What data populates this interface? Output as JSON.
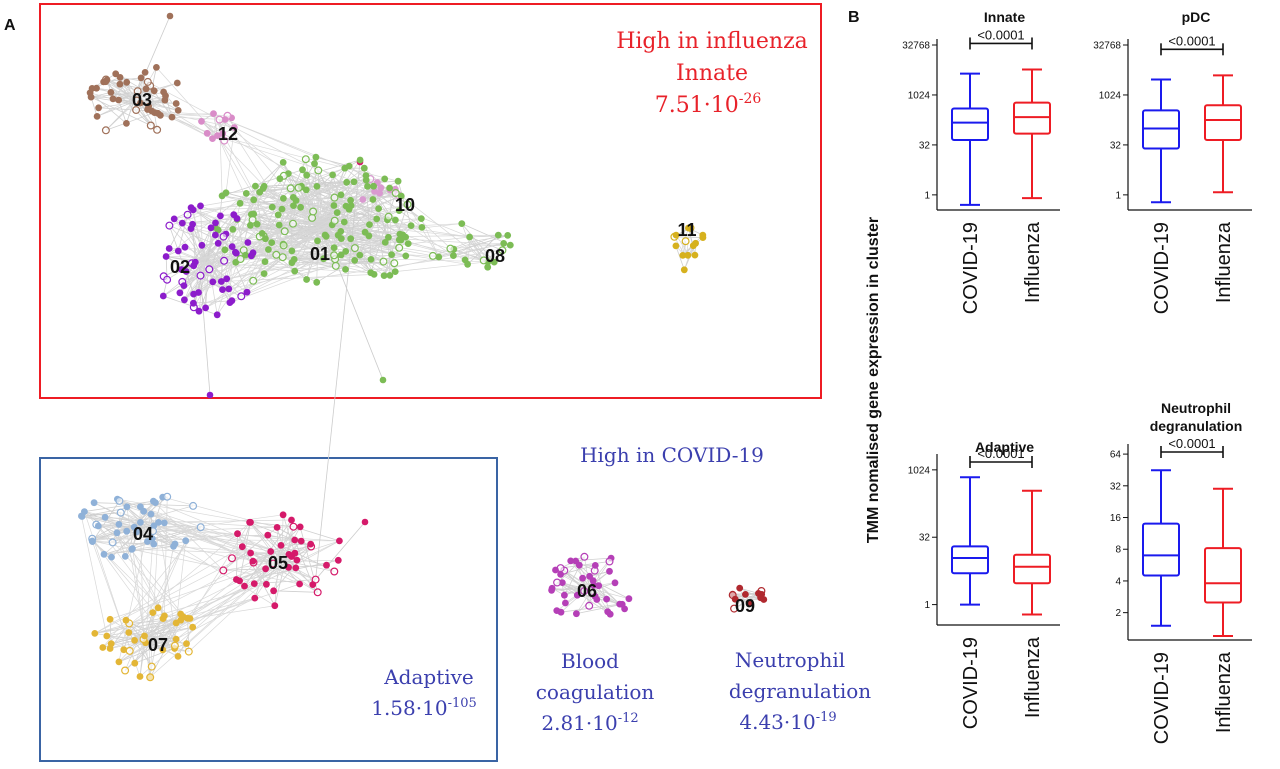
{
  "panel_a_label": "A",
  "panel_b_label": "B",
  "influenza_header": "High in influenza",
  "influenza_term": "Innate",
  "influenza_p": {
    "base": "7.51·10",
    "exp": "-26"
  },
  "covid_header": "High in COVID-19",
  "covid_groups": [
    {
      "term": "Adaptive",
      "base": "1.58·10",
      "exp": "-105"
    },
    {
      "term_line1": "Blood",
      "term_line2": "coagulation",
      "base": "2.81·10",
      "exp": "-12"
    },
    {
      "term_line1": "Neutrophil",
      "term_line2": "degranulation",
      "base": "4.43·10",
      "exp": "-19"
    }
  ],
  "network_clusters": [
    {
      "id": "01",
      "color": "#7cbc55"
    },
    {
      "id": "02",
      "color": "#8c1ccb"
    },
    {
      "id": "03",
      "color": "#a0715a"
    },
    {
      "id": "04",
      "color": "#8fb1d8"
    },
    {
      "id": "05",
      "color": "#d51a6a"
    },
    {
      "id": "06",
      "color": "#b53fb7"
    },
    {
      "id": "07",
      "color": "#e3b636"
    },
    {
      "id": "08",
      "color": "#7cbc55"
    },
    {
      "id": "09",
      "color": "#b0292f"
    },
    {
      "id": "10",
      "color": "#d99ad0"
    },
    {
      "id": "11",
      "color": "#d6b11e"
    },
    {
      "id": "12",
      "color": "#d98cc8"
    }
  ],
  "colors": {
    "covid": "#1a1aee",
    "influenza": "#ee1c24",
    "influenza_frame": "#ee1c24",
    "covid_frame": "#3a64a4"
  },
  "chart_data": {
    "type": "boxplot",
    "ylabel": "TMM nomalised gene expression in cluster",
    "categories": [
      "COVID-19",
      "Influenza"
    ],
    "panels": [
      {
        "title": "Innate",
        "yscale": "log2",
        "yticks": [
          1,
          32,
          1024,
          32768
        ],
        "ytick_labels": [
          "1",
          "32",
          "1024",
          "32768"
        ],
        "pvalue": "<0.0001",
        "boxes": [
          {
            "group": "COVID-19",
            "min": 0.5,
            "q1": 45,
            "median": 150,
            "q3": 400,
            "max": 4500
          },
          {
            "group": "Influenza",
            "min": 0.8,
            "q1": 70,
            "median": 220,
            "q3": 600,
            "max": 6000
          }
        ]
      },
      {
        "title": "pDC",
        "yscale": "log2",
        "yticks": [
          1,
          32,
          1024,
          32768
        ],
        "ytick_labels": [
          "1",
          "32",
          "1024",
          "32768"
        ],
        "pvalue": "<0.0001",
        "boxes": [
          {
            "group": "COVID-19",
            "min": 0.6,
            "q1": 25,
            "median": 100,
            "q3": 350,
            "max": 3000
          },
          {
            "group": "Influenza",
            "min": 1.2,
            "q1": 45,
            "median": 180,
            "q3": 500,
            "max": 4000
          }
        ]
      },
      {
        "title": "Adaptive",
        "yscale": "log2",
        "yticks": [
          1,
          32,
          1024
        ],
        "ytick_labels": [
          "1",
          "32",
          "1024"
        ],
        "pvalue": "<0.0001",
        "boxes": [
          {
            "group": "COVID-19",
            "min": 1.0,
            "q1": 5,
            "median": 11,
            "q3": 20,
            "max": 700
          },
          {
            "group": "Influenza",
            "min": 0.6,
            "q1": 3,
            "median": 7,
            "q3": 13,
            "max": 350
          }
        ]
      },
      {
        "title_line1": "Neutrophil",
        "title_line2": "degranulation",
        "yscale": "log2",
        "yticks": [
          2,
          4,
          8,
          16,
          32,
          64
        ],
        "ytick_labels": [
          "2",
          "4",
          "8",
          "16",
          "32",
          "64"
        ],
        "pvalue": "<0.0001",
        "boxes": [
          {
            "group": "COVID-19",
            "min": 1.5,
            "q1": 4.5,
            "median": 7,
            "q3": 14,
            "max": 45
          },
          {
            "group": "Influenza",
            "min": 1.2,
            "q1": 2.5,
            "median": 3.8,
            "q3": 8.2,
            "max": 30
          }
        ]
      }
    ]
  }
}
